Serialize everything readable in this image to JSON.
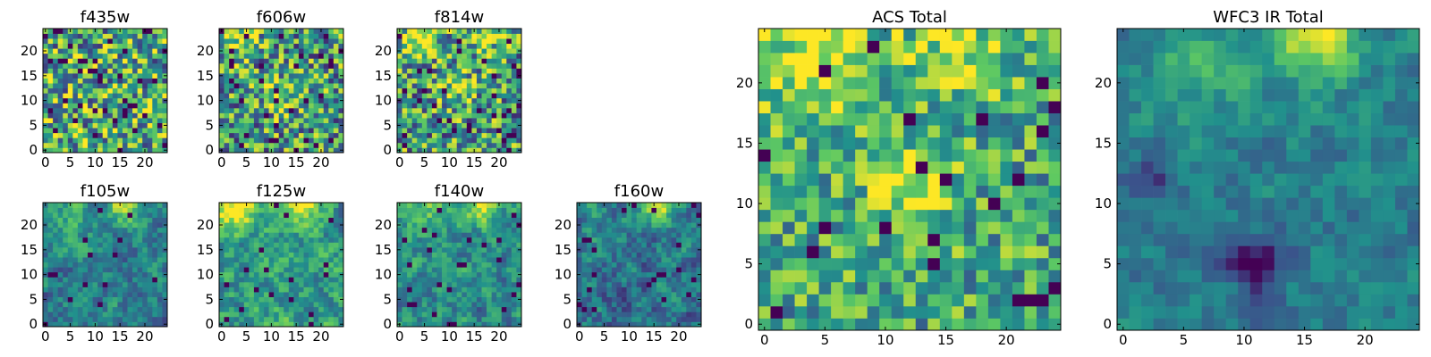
{
  "figure": {
    "colormap": [
      "#440154",
      "#3b528b",
      "#21918c",
      "#5ec962",
      "#fde725"
    ]
  },
  "chart_data": [
    {
      "type": "heatmap",
      "title": "f435w",
      "grid_size": 25,
      "x_ticks": [
        0,
        5,
        10,
        15,
        20
      ],
      "y_ticks": [
        0,
        5,
        10,
        15,
        20
      ],
      "seed": 11,
      "base": 0.62,
      "noise": 0.45,
      "dark_fraction": 0.07,
      "hotspots": [],
      "smooth": 0
    },
    {
      "type": "heatmap",
      "title": "f606w",
      "grid_size": 25,
      "x_ticks": [
        0,
        5,
        10,
        15,
        20
      ],
      "y_ticks": [
        0,
        5,
        10,
        15,
        20
      ],
      "seed": 23,
      "base": 0.55,
      "noise": 0.42,
      "dark_fraction": 0.05,
      "hotspots": [
        {
          "x": 3,
          "y": 23,
          "r": 3,
          "a": 0.35
        },
        {
          "x": 12,
          "y": 11,
          "r": 2.5,
          "a": 0.3
        }
      ],
      "smooth": 0
    },
    {
      "type": "heatmap",
      "title": "f814w",
      "grid_size": 25,
      "x_ticks": [
        0,
        5,
        10,
        15,
        20
      ],
      "y_ticks": [
        0,
        5,
        10,
        15,
        20
      ],
      "seed": 37,
      "base": 0.55,
      "noise": 0.42,
      "dark_fraction": 0.05,
      "hotspots": [
        {
          "x": 4,
          "y": 23,
          "r": 3,
          "a": 0.4
        },
        {
          "x": 17,
          "y": 23,
          "r": 2.5,
          "a": 0.35
        },
        {
          "x": 12,
          "y": 12,
          "r": 2.5,
          "a": 0.25
        }
      ],
      "smooth": 0
    },
    {
      "type": "heatmap",
      "title": "f105w",
      "grid_size": 25,
      "x_ticks": [
        0,
        5,
        10,
        15,
        20
      ],
      "y_ticks": [
        0,
        5,
        10,
        15,
        20
      ],
      "seed": 41,
      "base": 0.42,
      "noise": 0.32,
      "dark_fraction": 0.03,
      "hotspots": [
        {
          "x": 16,
          "y": 24,
          "r": 2.5,
          "a": 0.55
        },
        {
          "x": 5,
          "y": 21,
          "r": 4,
          "a": 0.15
        }
      ],
      "smooth": 1
    },
    {
      "type": "heatmap",
      "title": "f125w",
      "grid_size": 25,
      "x_ticks": [
        0,
        5,
        10,
        15,
        20
      ],
      "y_ticks": [
        0,
        5,
        10,
        15,
        20
      ],
      "seed": 53,
      "base": 0.55,
      "noise": 0.35,
      "dark_fraction": 0.02,
      "hotspots": [
        {
          "x": 3,
          "y": 23,
          "r": 3,
          "a": 0.45
        },
        {
          "x": 16,
          "y": 24,
          "r": 2.5,
          "a": 0.5
        }
      ],
      "smooth": 1
    },
    {
      "type": "heatmap",
      "title": "f140w",
      "grid_size": 25,
      "x_ticks": [
        0,
        5,
        10,
        15,
        20
      ],
      "y_ticks": [
        0,
        5,
        10,
        15,
        20
      ],
      "seed": 67,
      "base": 0.48,
      "noise": 0.33,
      "dark_fraction": 0.03,
      "hotspots": [
        {
          "x": 5,
          "y": 23,
          "r": 3,
          "a": 0.3
        },
        {
          "x": 16,
          "y": 24,
          "r": 2.5,
          "a": 0.5
        }
      ],
      "smooth": 1
    },
    {
      "type": "heatmap",
      "title": "f160w",
      "grid_size": 25,
      "x_ticks": [
        0,
        5,
        10,
        15,
        20
      ],
      "y_ticks": [
        0,
        5,
        10,
        15,
        20
      ],
      "seed": 79,
      "base": 0.38,
      "noise": 0.33,
      "dark_fraction": 0.03,
      "hotspots": [
        {
          "x": 16,
          "y": 24,
          "r": 2.5,
          "a": 0.55
        },
        {
          "x": 3,
          "y": 20,
          "r": 3,
          "a": 0.15
        }
      ],
      "smooth": 1
    },
    {
      "type": "heatmap",
      "title": "ACS Total",
      "grid_size": 25,
      "x_ticks": [
        0,
        5,
        10,
        15,
        20
      ],
      "y_ticks": [
        0,
        5,
        10,
        15,
        20
      ],
      "seed": 97,
      "base": 0.6,
      "noise": 0.3,
      "dark_fraction": 0.04,
      "hotspots": [
        {
          "x": 4,
          "y": 22,
          "r": 3.5,
          "a": 0.35
        },
        {
          "x": 16,
          "y": 23,
          "r": 3,
          "a": 0.3
        },
        {
          "x": 12,
          "y": 11.5,
          "r": 2.5,
          "a": 0.35
        }
      ],
      "smooth": 0
    },
    {
      "type": "heatmap",
      "title": "WFC3 IR Total",
      "grid_size": 25,
      "x_ticks": [
        0,
        5,
        10,
        15,
        20
      ],
      "y_ticks": [
        0,
        5,
        10,
        15,
        20
      ],
      "seed": 109,
      "base": 0.42,
      "noise": 0.22,
      "dark_fraction": 0.0,
      "hotspots": [
        {
          "x": 16,
          "y": 24,
          "r": 2.5,
          "a": 0.6
        },
        {
          "x": 6,
          "y": 22,
          "r": 3.5,
          "a": 0.2
        },
        {
          "x": 11,
          "y": 5,
          "r": 1.5,
          "a": -0.45
        },
        {
          "x": 3,
          "y": 12,
          "r": 1.2,
          "a": -0.35
        }
      ],
      "smooth": 1
    }
  ]
}
